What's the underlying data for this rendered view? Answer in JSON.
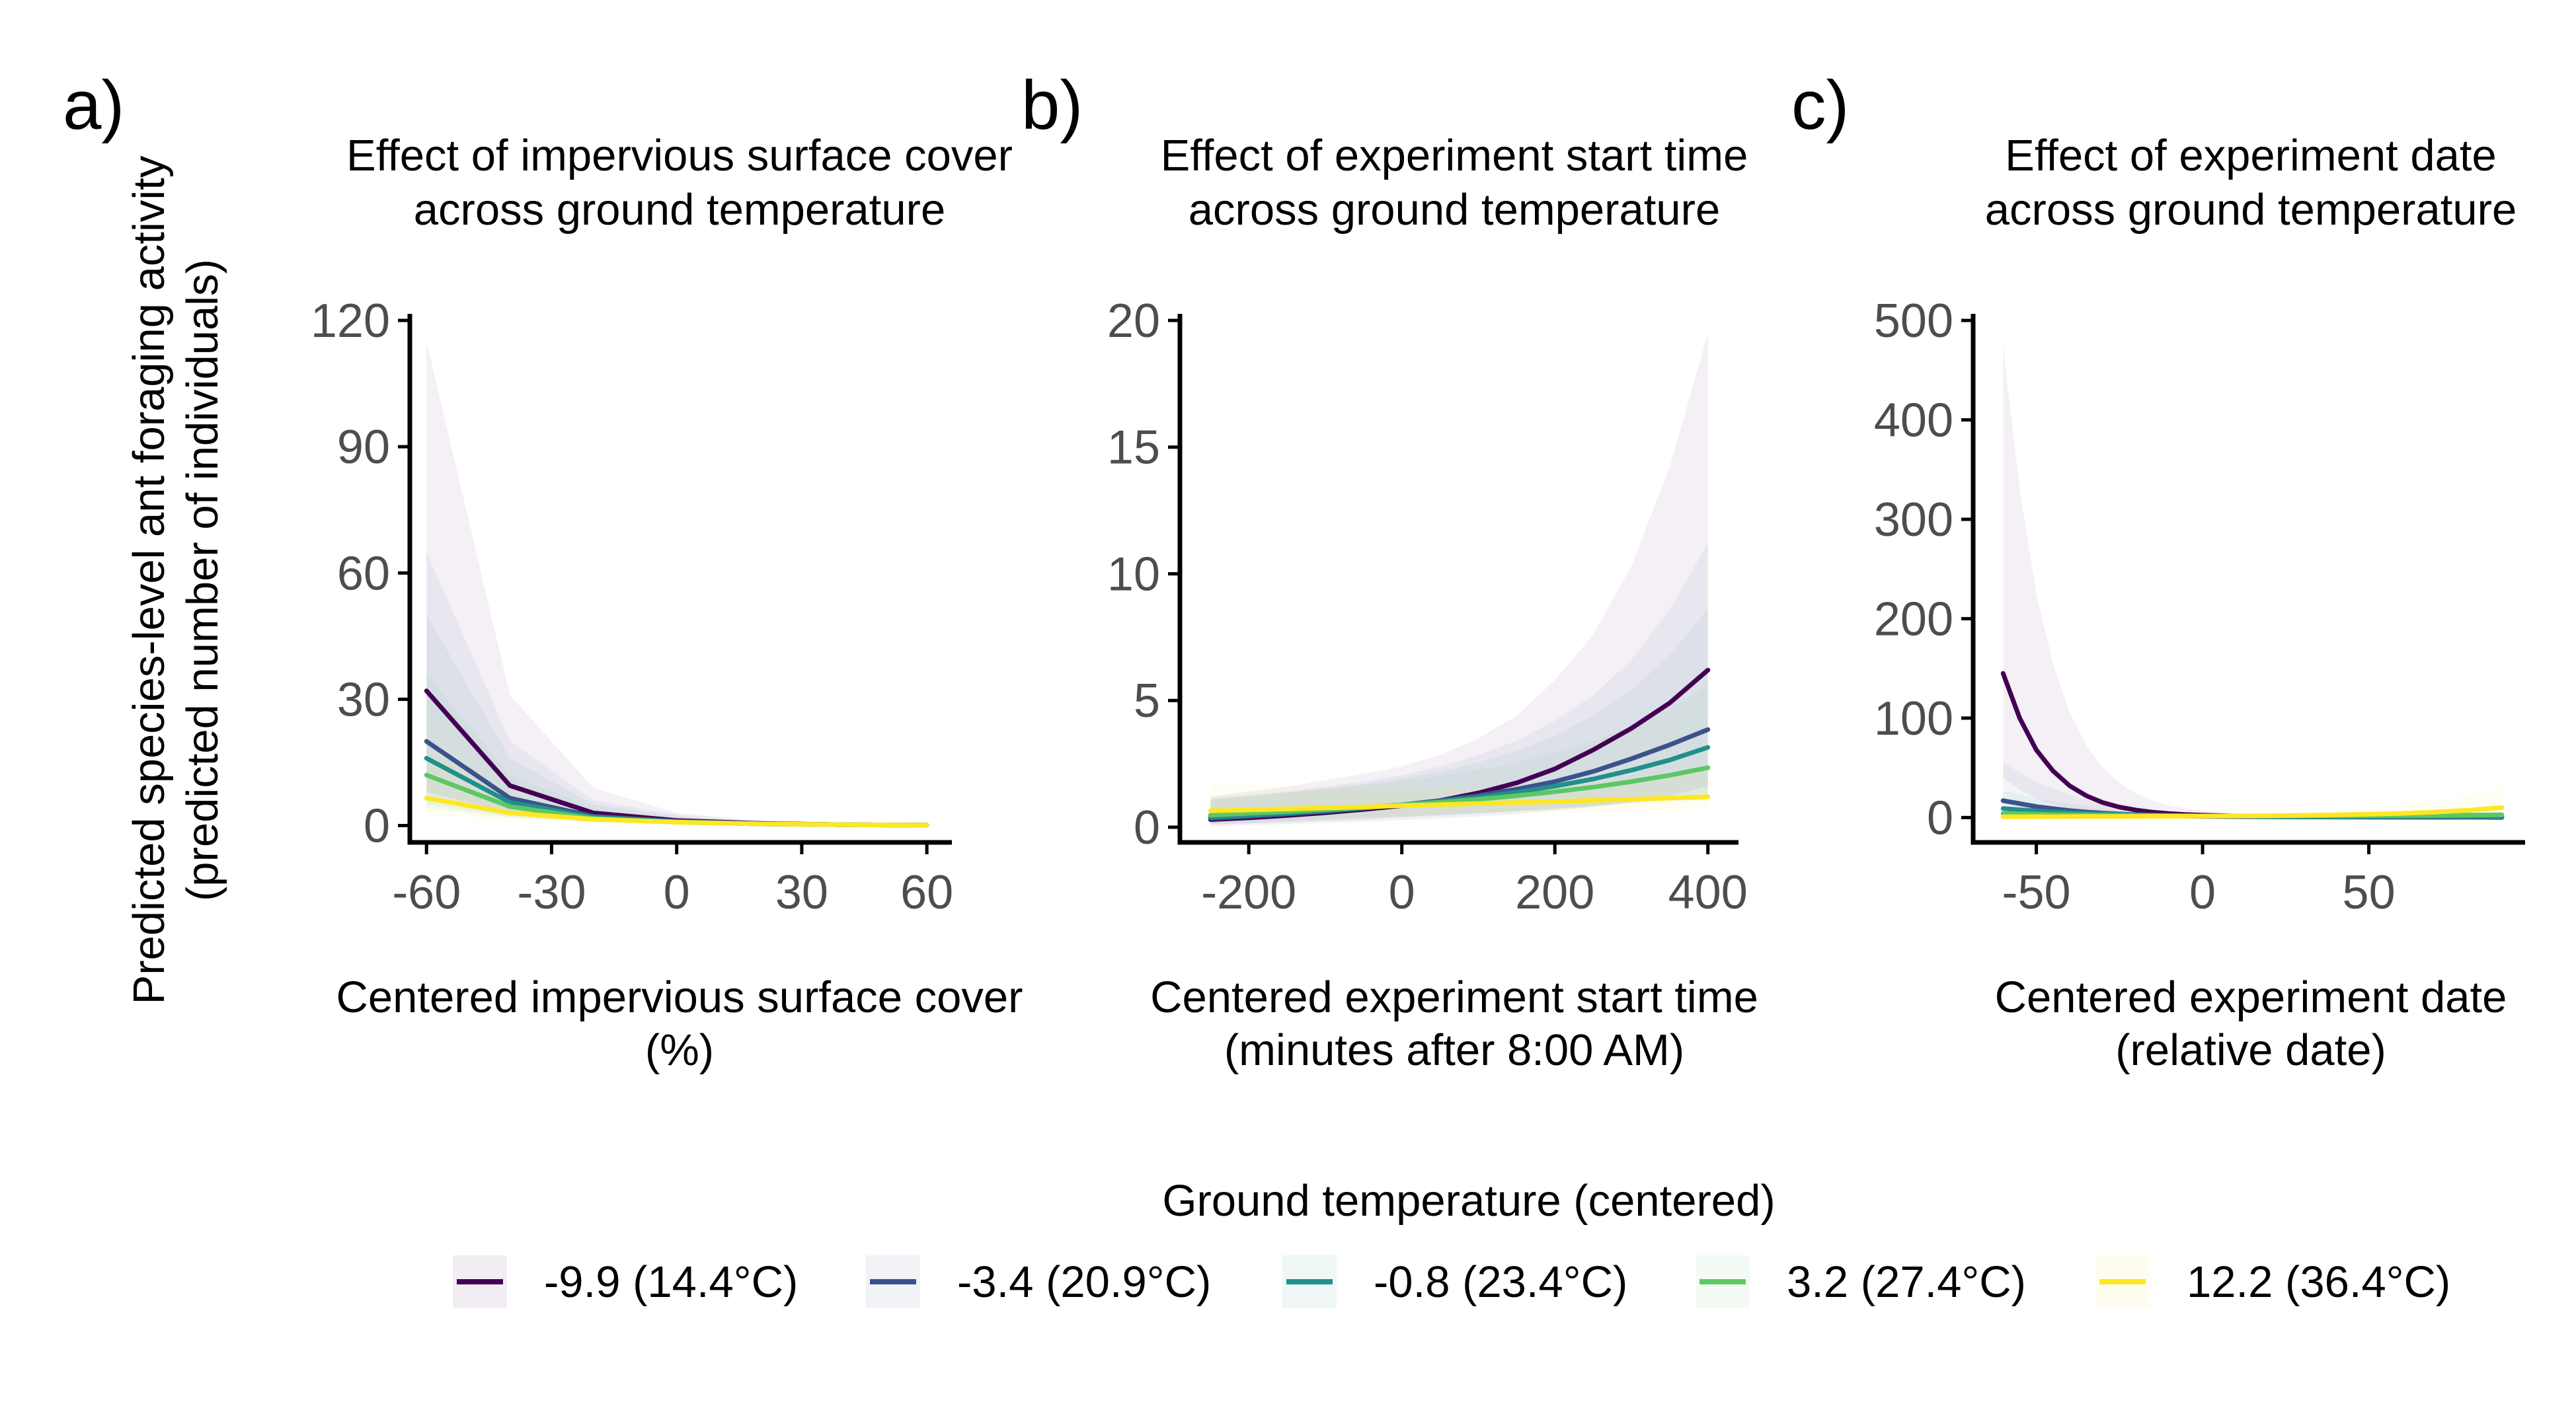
{
  "y_axis_label": [
    "Predicted species-level ant foraging activity",
    "(predicted number of individuals)"
  ],
  "legend": {
    "title": "Ground temperature (centered)",
    "items": [
      {
        "label": "-9.9 (14.4°C)",
        "color": "#440154"
      },
      {
        "label": "-3.4 (20.9°C)",
        "color": "#3b528b"
      },
      {
        "label": "-0.8 (23.4°C)",
        "color": "#21908c"
      },
      {
        "label": "3.2 (27.4°C)",
        "color": "#5dc863"
      },
      {
        "label": "12.2 (36.4°C)",
        "color": "#fde725"
      }
    ]
  },
  "chart_data": [
    {
      "type": "line",
      "panel": "a)",
      "title": [
        "Effect of impervious surface cover",
        "across ground temperature"
      ],
      "xlabel": [
        "Centered impervious surface cover",
        "(%)"
      ],
      "xlim": [
        -64,
        66
      ],
      "ylim": [
        -4,
        120
      ],
      "xticks": [
        -60,
        -30,
        0,
        30,
        60
      ],
      "yticks": [
        0,
        30,
        60,
        90,
        120
      ],
      "x": [
        -60,
        -40,
        -20,
        0,
        20,
        40,
        60
      ],
      "series": [
        {
          "name": "-9.9 (14.4°C)",
          "values": [
            32,
            9.5,
            3,
            1.2,
            0.5,
            0.2,
            0.1
          ],
          "lower": [
            8,
            3,
            1,
            0.5,
            0.2,
            0.1,
            0
          ],
          "upper": [
            115,
            31,
            9,
            3,
            1.2,
            0.6,
            0.3
          ]
        },
        {
          "name": "-3.4 (20.9°C)",
          "values": [
            20,
            6.5,
            2.2,
            1,
            0.4,
            0.2,
            0.1
          ],
          "lower": [
            6,
            2.5,
            1,
            0.4,
            0.2,
            0.1,
            0
          ],
          "upper": [
            65,
            20,
            6,
            2.5,
            1,
            0.5,
            0.2
          ]
        },
        {
          "name": "-0.8 (23.4°C)",
          "values": [
            16,
            5.5,
            2,
            0.9,
            0.4,
            0.2,
            0.1
          ],
          "lower": [
            5,
            2,
            0.9,
            0.4,
            0.2,
            0.1,
            0
          ],
          "upper": [
            50,
            16,
            5,
            2.2,
            0.9,
            0.4,
            0.2
          ]
        },
        {
          "name": "3.2 (27.4°C)",
          "values": [
            12,
            4.5,
            1.7,
            0.8,
            0.4,
            0.2,
            0.1
          ],
          "lower": [
            4,
            1.8,
            0.8,
            0.4,
            0.2,
            0.1,
            0
          ],
          "upper": [
            36,
            12,
            4,
            1.8,
            0.8,
            0.4,
            0.2
          ]
        },
        {
          "name": "12.2 (36.4°C)",
          "values": [
            6.5,
            3,
            1.5,
            0.8,
            0.4,
            0.2,
            0.1
          ],
          "lower": [
            2.5,
            1.2,
            0.7,
            0.4,
            0.2,
            0.1,
            0
          ],
          "upper": [
            18,
            7,
            3.2,
            1.6,
            0.8,
            0.4,
            0.2
          ]
        }
      ]
    },
    {
      "type": "line",
      "panel": "b)",
      "title": [
        "Effect of experiment start time",
        "across ground temperature"
      ],
      "xlabel": [
        "Centered experiment start time",
        "(minutes after 8:00 AM)"
      ],
      "xlim": [
        -290,
        440
      ],
      "ylim": [
        -0.6,
        20
      ],
      "xticks": [
        -200,
        0,
        200,
        400
      ],
      "yticks": [
        0,
        5,
        10,
        15,
        20
      ],
      "x": [
        -250,
        -200,
        -150,
        -100,
        -50,
        0,
        50,
        100,
        150,
        200,
        250,
        300,
        350,
        400
      ],
      "series": [
        {
          "name": "-9.9 (14.4°C)",
          "values": [
            0.3,
            0.37,
            0.46,
            0.57,
            0.7,
            0.85,
            1.05,
            1.35,
            1.75,
            2.3,
            3.05,
            3.9,
            4.9,
            6.2
          ],
          "lower": [
            0.05,
            0.08,
            0.12,
            0.17,
            0.22,
            0.28,
            0.35,
            0.42,
            0.52,
            0.65,
            0.8,
            1,
            1.25,
            1.6
          ],
          "upper": [
            1.2,
            1.4,
            1.6,
            1.85,
            2.1,
            2.4,
            2.85,
            3.5,
            4.4,
            5.8,
            7.6,
            10.3,
            14.2,
            19.5
          ]
        },
        {
          "name": "-3.4 (20.9°C)",
          "values": [
            0.35,
            0.43,
            0.52,
            0.63,
            0.75,
            0.88,
            1.05,
            1.25,
            1.5,
            1.8,
            2.2,
            2.7,
            3.25,
            3.85
          ],
          "lower": [
            0.1,
            0.14,
            0.19,
            0.25,
            0.31,
            0.38,
            0.45,
            0.53,
            0.62,
            0.72,
            0.83,
            0.96,
            1.1,
            1.25
          ],
          "upper": [
            1.1,
            1.25,
            1.4,
            1.6,
            1.8,
            2.05,
            2.4,
            2.85,
            3.4,
            4.2,
            5.2,
            6.6,
            8.6,
            11.2
          ]
        },
        {
          "name": "-0.8 (23.4°C)",
          "values": [
            0.4,
            0.47,
            0.56,
            0.65,
            0.76,
            0.88,
            1.02,
            1.18,
            1.38,
            1.62,
            1.9,
            2.25,
            2.65,
            3.15
          ],
          "lower": [
            0.13,
            0.17,
            0.22,
            0.28,
            0.34,
            0.41,
            0.48,
            0.56,
            0.64,
            0.74,
            0.85,
            0.97,
            1.1,
            1.25
          ],
          "upper": [
            1.1,
            1.22,
            1.36,
            1.52,
            1.7,
            1.92,
            2.2,
            2.55,
            3,
            3.6,
            4.4,
            5.4,
            6.8,
            8.6
          ]
        },
        {
          "name": "3.2 (27.4°C)",
          "values": [
            0.48,
            0.55,
            0.62,
            0.7,
            0.78,
            0.88,
            0.98,
            1.1,
            1.24,
            1.4,
            1.58,
            1.8,
            2.05,
            2.35
          ],
          "lower": [
            0.18,
            0.22,
            0.27,
            0.32,
            0.38,
            0.44,
            0.5,
            0.57,
            0.64,
            0.72,
            0.8,
            0.9,
            1,
            1.1
          ],
          "upper": [
            1.2,
            1.3,
            1.4,
            1.52,
            1.65,
            1.82,
            2.02,
            2.26,
            2.55,
            2.95,
            3.4,
            4,
            4.7,
            5.6
          ]
        },
        {
          "name": "12.2 (36.4°C)",
          "values": [
            0.65,
            0.68,
            0.72,
            0.76,
            0.8,
            0.85,
            0.89,
            0.93,
            0.97,
            1.01,
            1.06,
            1.1,
            1.15,
            1.2
          ],
          "lower": [
            0.28,
            0.31,
            0.35,
            0.38,
            0.42,
            0.46,
            0.5,
            0.53,
            0.56,
            0.59,
            0.62,
            0.65,
            0.68,
            0.7
          ],
          "upper": [
            1.7,
            1.65,
            1.6,
            1.55,
            1.52,
            1.5,
            1.52,
            1.56,
            1.62,
            1.7,
            1.8,
            1.92,
            2.05,
            2.2
          ]
        }
      ]
    },
    {
      "type": "line",
      "panel": "c)",
      "title": [
        "Effect of experiment date",
        "across ground temperature"
      ],
      "xlabel": [
        "Centered experiment date",
        "(relative date)"
      ],
      "xlim": [
        -69,
        97
      ],
      "ylim": [
        -25,
        500
      ],
      "xticks": [
        -50,
        0,
        50
      ],
      "yticks": [
        0,
        100,
        200,
        300,
        400,
        500
      ],
      "x": [
        -60,
        -55,
        -50,
        -45,
        -40,
        -35,
        -30,
        -25,
        -20,
        -15,
        -10,
        -5,
        0,
        10,
        20,
        30,
        40,
        50,
        60,
        70,
        80,
        90
      ],
      "series": [
        {
          "name": "-9.9 (14.4°C)",
          "values": [
            145,
            100,
            68,
            47,
            32,
            22,
            15,
            10.5,
            7.5,
            5.4,
            4,
            3,
            2.4,
            1.5,
            1,
            0.8,
            0.6,
            0.5,
            0.4,
            0.3,
            0.3,
            0.2
          ],
          "lower": [
            40,
            28,
            19,
            13,
            9,
            6.2,
            4.3,
            3,
            2.1,
            1.5,
            1.1,
            0.8,
            0.6,
            0.35,
            0.2,
            0.15,
            0.1,
            0.08,
            0.06,
            0.05,
            0.04,
            0.03
          ],
          "upper": [
            475,
            330,
            225,
            155,
            106,
            73,
            50,
            35,
            24,
            17,
            12,
            9,
            7,
            4.5,
            3,
            2.2,
            1.7,
            1.4,
            1.2,
            1,
            0.9,
            0.8
          ]
        },
        {
          "name": "-3.4 (20.9°C)",
          "values": [
            17,
            14,
            11,
            9,
            7,
            5.6,
            4.5,
            3.6,
            2.9,
            2.3,
            1.9,
            1.5,
            1.2,
            0.9,
            0.7,
            0.6,
            0.5,
            0.45,
            0.4,
            0.35,
            0.3,
            0.3
          ],
          "lower": [
            5,
            4.2,
            3.4,
            2.8,
            2.2,
            1.8,
            1.5,
            1.2,
            1,
            0.8,
            0.65,
            0.5,
            0.4,
            0.3,
            0.25,
            0.2,
            0.16,
            0.14,
            0.12,
            0.1,
            0.09,
            0.08
          ],
          "upper": [
            55,
            45,
            36,
            29,
            23,
            18,
            14,
            11,
            8.5,
            6.6,
            5.2,
            4.1,
            3.3,
            2.3,
            1.8,
            1.5,
            1.3,
            1.15,
            1.05,
            1,
            0.95,
            0.9
          ]
        },
        {
          "name": "-0.8 (23.4°C)",
          "values": [
            9,
            7.8,
            6.7,
            5.8,
            5,
            4.3,
            3.7,
            3.2,
            2.8,
            2.4,
            2.1,
            1.8,
            1.6,
            1.3,
            1.1,
            1,
            0.95,
            0.9,
            0.9,
            0.9,
            0.9,
            0.9
          ],
          "lower": [
            3,
            2.7,
            2.4,
            2.1,
            1.9,
            1.7,
            1.5,
            1.3,
            1.15,
            1,
            0.9,
            0.8,
            0.7,
            0.55,
            0.45,
            0.4,
            0.35,
            0.32,
            0.3,
            0.28,
            0.26,
            0.25
          ],
          "upper": [
            27,
            23,
            19,
            16,
            13.5,
            11.3,
            9.5,
            8,
            6.8,
            5.8,
            5,
            4.3,
            3.7,
            3,
            2.6,
            2.4,
            2.3,
            2.3,
            2.4,
            2.6,
            2.9,
            3.3
          ]
        },
        {
          "name": "3.2 (27.4°C)",
          "values": [
            4,
            3.7,
            3.4,
            3.1,
            2.85,
            2.6,
            2.4,
            2.2,
            2.05,
            1.9,
            1.78,
            1.68,
            1.6,
            1.55,
            1.55,
            1.6,
            1.7,
            1.85,
            2,
            2.2,
            2.5,
            2.8
          ],
          "lower": [
            1.4,
            1.35,
            1.3,
            1.25,
            1.2,
            1.15,
            1.1,
            1.05,
            1,
            0.95,
            0.9,
            0.86,
            0.82,
            0.76,
            0.72,
            0.7,
            0.7,
            0.72,
            0.76,
            0.8,
            0.85,
            0.9
          ],
          "upper": [
            11,
            10,
            9.2,
            8.4,
            7.6,
            6.9,
            6.3,
            5.7,
            5.2,
            4.8,
            4.4,
            4.1,
            3.8,
            3.5,
            3.4,
            3.5,
            3.8,
            4.3,
            5,
            6,
            7.2,
            8.7
          ]
        },
        {
          "name": "12.2 (36.4°C)",
          "values": [
            0.8,
            0.85,
            0.9,
            0.95,
            1,
            1.05,
            1.1,
            1.15,
            1.2,
            1.25,
            1.3,
            1.35,
            1.4,
            1.6,
            1.85,
            2.2,
            2.7,
            3.3,
            4.2,
            5.5,
            7.3,
            10
          ],
          "lower": [
            0.2,
            0.22,
            0.25,
            0.28,
            0.31,
            0.34,
            0.37,
            0.4,
            0.43,
            0.46,
            0.49,
            0.52,
            0.55,
            0.62,
            0.7,
            0.8,
            0.95,
            1.1,
            1.3,
            1.6,
            2,
            2.5
          ],
          "upper": [
            3,
            3,
            3.05,
            3.1,
            3.15,
            3.2,
            3.25,
            3.3,
            3.35,
            3.4,
            3.5,
            3.6,
            3.7,
            4.1,
            4.8,
            5.8,
            7.2,
            9.2,
            12,
            16,
            22,
            30
          ]
        }
      ]
    }
  ]
}
